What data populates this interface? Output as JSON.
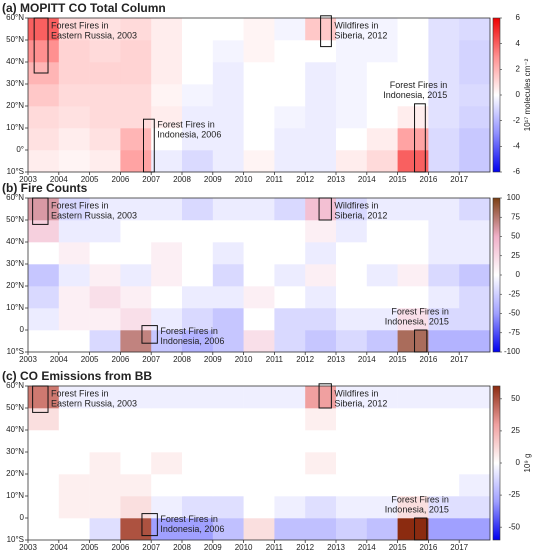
{
  "chart_data": [
    {
      "type": "heatmap",
      "title": "(a) MOPITT CO Total Column",
      "xbins": [
        2003,
        2004,
        2005,
        2006,
        2007,
        2008,
        2009,
        2010,
        2011,
        2012,
        2013,
        2014,
        2015,
        2016,
        2017,
        2018
      ],
      "ybins": [
        -10,
        0,
        10,
        20,
        30,
        40,
        50,
        60
      ],
      "z": [
        [
          0.5,
          0.3,
          0.5,
          2.5,
          -0.5,
          -1,
          -0.5,
          0.3,
          -0.5,
          -0.5,
          0.5,
          1,
          4,
          -1,
          -1.5
        ],
        [
          0.8,
          0.5,
          0.8,
          2,
          0,
          -0.5,
          -0.5,
          0,
          -0.5,
          -0.5,
          0,
          0.5,
          2.5,
          -1,
          -1.5
        ],
        [
          1,
          0.8,
          1,
          1,
          0.5,
          -0.5,
          -0.5,
          0,
          -0.3,
          -0.5,
          -0.3,
          0,
          0.5,
          -0.8,
          -1.2
        ],
        [
          1.5,
          1,
          1,
          1,
          0.3,
          -0.3,
          -0.5,
          0,
          0,
          -0.5,
          -0.3,
          0,
          0,
          -0.8,
          -1
        ],
        [
          2,
          1.2,
          1.2,
          1.2,
          0.5,
          0,
          -0.5,
          0,
          0,
          -0.5,
          -0.3,
          0,
          0,
          -0.8,
          -1.2
        ],
        [
          3,
          1.2,
          1,
          1.2,
          0.5,
          0,
          -0.3,
          0.3,
          0,
          0,
          -0.3,
          -0.3,
          0,
          -0.8,
          -1.2
        ],
        [
          4,
          1,
          0.8,
          1,
          0.5,
          0,
          0,
          0.3,
          -0.3,
          1.5,
          -0.3,
          -0.3,
          0,
          -0.8,
          -1
        ]
      ],
      "zlim": [
        -6,
        6
      ],
      "zticks": [
        -6,
        -4,
        -2,
        0,
        2,
        4,
        6
      ],
      "colormap": [
        "#0000ee",
        "#9090ff",
        "#ffffff",
        "#ff9090",
        "#ee0000"
      ],
      "colorbar_label": "10¹⁷ molecules cm⁻²",
      "xlim": [
        2003,
        2018
      ],
      "xticks": [
        2003,
        2004,
        2005,
        2006,
        2007,
        2008,
        2009,
        2010,
        2011,
        2012,
        2013,
        2014,
        2015,
        2016,
        2017
      ],
      "ylim": [
        -10,
        60
      ],
      "yticks": [
        {
          "value": -10,
          "label": "10°S"
        },
        {
          "value": 0,
          "label": "0°"
        },
        {
          "value": 10,
          "label": "10°N"
        },
        {
          "value": 20,
          "label": "20°N"
        },
        {
          "value": 30,
          "label": "30°N"
        },
        {
          "value": 40,
          "label": "40°N"
        },
        {
          "value": 50,
          "label": "50°N"
        },
        {
          "value": 60,
          "label": "60°N"
        }
      ],
      "annotations": [
        {
          "text": [
            "Forest Fires in",
            "Eastern Russia, 2003"
          ],
          "xrange": [
            2003.2,
            2003.65
          ],
          "yrange": [
            35,
            60
          ]
        },
        {
          "text": [
            "Forest Fires in",
            "Indonesia, 2006"
          ],
          "xrange": [
            2006.75,
            2007.1
          ],
          "yrange": [
            -10,
            14
          ]
        },
        {
          "text": [
            "Wildfires in",
            "Siberia, 2012"
          ],
          "xrange": [
            2012.5,
            2012.85
          ],
          "yrange": [
            47,
            61
          ]
        },
        {
          "text": [
            "Forest Fires in",
            "Indonesia, 2015"
          ],
          "xrange": [
            2015.55,
            2015.9
          ],
          "yrange": [
            -10,
            21
          ]
        }
      ]
    },
    {
      "type": "heatmap",
      "title": "(b) Fire Counts",
      "xbins": [
        2003,
        2004,
        2005,
        2006,
        2007,
        2008,
        2009,
        2010,
        2011,
        2012,
        2013,
        2014,
        2015,
        2016,
        2017,
        2018
      ],
      "ybins": [
        -10,
        0,
        10,
        20,
        30,
        40,
        50,
        60
      ],
      "z": [
        [
          0,
          0,
          -20,
          70,
          -30,
          -40,
          -30,
          20,
          -20,
          -30,
          -20,
          -30,
          80,
          -40,
          -40
        ],
        [
          -10,
          10,
          10,
          20,
          -10,
          -20,
          -30,
          0,
          -20,
          -20,
          -10,
          -10,
          20,
          -20,
          -20
        ],
        [
          -20,
          10,
          20,
          10,
          0,
          -10,
          -10,
          10,
          0,
          -10,
          0,
          0,
          0,
          -10,
          -20
        ],
        [
          -30,
          -10,
          10,
          -10,
          10,
          0,
          -20,
          0,
          -10,
          10,
          0,
          -10,
          10,
          -20,
          -30
        ],
        [
          0,
          10,
          0,
          0,
          10,
          0,
          -10,
          0,
          0,
          -10,
          0,
          0,
          0,
          -10,
          -10
        ],
        [
          30,
          -10,
          -10,
          0,
          0,
          0,
          0,
          0,
          0,
          10,
          -10,
          0,
          0,
          -10,
          -10
        ],
        [
          60,
          -20,
          -10,
          -10,
          -10,
          -20,
          -10,
          -10,
          -20,
          40,
          -20,
          -10,
          -10,
          -10,
          -20
        ]
      ],
      "zlim": [
        -100,
        100
      ],
      "zticks": [
        -100,
        -75,
        -50,
        -25,
        0,
        25,
        50,
        75,
        100
      ],
      "colormap": [
        "#0000ee",
        "#a0a0ff",
        "#ffffff",
        "#f0b0c8",
        "#7b3f12"
      ],
      "xlim": [
        2003,
        2018
      ],
      "xticks": [
        2003,
        2004,
        2005,
        2006,
        2007,
        2008,
        2009,
        2010,
        2011,
        2012,
        2013,
        2014,
        2015,
        2016,
        2017
      ],
      "ylim": [
        -10,
        60
      ],
      "yticks": [
        {
          "value": -10,
          "label": "10°S"
        },
        {
          "value": 0,
          "label": "0"
        },
        {
          "value": 10,
          "label": "10°N"
        },
        {
          "value": 20,
          "label": "20°N"
        },
        {
          "value": 30,
          "label": "30°N"
        },
        {
          "value": 40,
          "label": "40°N"
        },
        {
          "value": 50,
          "label": "50°N"
        },
        {
          "value": 60,
          "label": "60°N"
        }
      ],
      "annotations": [
        {
          "text": [
            "Forest Fires in",
            "Eastern Russia, 2003"
          ],
          "xrange": [
            2003.15,
            2003.65
          ],
          "yrange": [
            48,
            60
          ]
        },
        {
          "text": [
            "Forest Fires in",
            "Indonesia, 2006"
          ],
          "xrange": [
            2006.7,
            2007.2
          ],
          "yrange": [
            -6,
            2
          ]
        },
        {
          "text": [
            "Wildfires in",
            "Siberia, 2012"
          ],
          "xrange": [
            2012.45,
            2012.85
          ],
          "yrange": [
            50,
            60
          ]
        },
        {
          "text": [
            "Forest Fires in",
            "Indonesia, 2015"
          ],
          "xrange": [
            2015.55,
            2015.95
          ],
          "yrange": [
            -10,
            0
          ]
        }
      ]
    },
    {
      "type": "heatmap",
      "title": "(c) CO Emissions from BB",
      "xbins": [
        2003,
        2004,
        2005,
        2006,
        2007,
        2008,
        2009,
        2010,
        2011,
        2012,
        2013,
        2014,
        2015,
        2016,
        2017,
        2018
      ],
      "ybins": [
        -10,
        0,
        10,
        20,
        30,
        40,
        50,
        60
      ],
      "z": [
        [
          0,
          0,
          -10,
          50,
          -30,
          -30,
          -20,
          10,
          -20,
          -20,
          -15,
          -20,
          60,
          -30,
          -30
        ],
        [
          0,
          5,
          5,
          10,
          -5,
          -10,
          -10,
          0,
          -5,
          -10,
          -5,
          -5,
          10,
          -10,
          -10
        ],
        [
          0,
          5,
          5,
          5,
          0,
          0,
          0,
          0,
          0,
          0,
          0,
          0,
          0,
          0,
          -5
        ],
        [
          0,
          0,
          5,
          0,
          5,
          0,
          0,
          0,
          0,
          5,
          0,
          0,
          0,
          0,
          0
        ],
        [
          0,
          0,
          0,
          0,
          0,
          0,
          0,
          0,
          0,
          0,
          0,
          0,
          0,
          0,
          0
        ],
        [
          10,
          0,
          0,
          0,
          0,
          0,
          0,
          0,
          0,
          5,
          0,
          0,
          0,
          0,
          0
        ],
        [
          40,
          -5,
          -5,
          -5,
          -5,
          -5,
          -5,
          -5,
          -5,
          30,
          -5,
          -5,
          -5,
          -5,
          -5
        ]
      ],
      "zlim": [
        -60,
        60
      ],
      "zticks": [
        -50,
        -25,
        0,
        25,
        50
      ],
      "colormap": [
        "#0000ee",
        "#a0a0ff",
        "#ffffff",
        "#f0a0a0",
        "#8b2b10"
      ],
      "colorbar_label": "10⁹ g",
      "xlim": [
        2003,
        2018
      ],
      "xticks": [
        2003,
        2004,
        2005,
        2006,
        2007,
        2008,
        2009,
        2010,
        2011,
        2012,
        2013,
        2014,
        2015,
        2016,
        2017
      ],
      "ylim": [
        -10,
        60
      ],
      "yticks": [
        {
          "value": -10,
          "label": "10°S"
        },
        {
          "value": 0,
          "label": "0"
        },
        {
          "value": 10,
          "label": "10°N"
        },
        {
          "value": 20,
          "label": "20°N"
        },
        {
          "value": 30,
          "label": "30°N"
        },
        {
          "value": 40,
          "label": "40°N"
        },
        {
          "value": 50,
          "label": "50°N"
        },
        {
          "value": 60,
          "label": "60°N"
        }
      ],
      "annotations": [
        {
          "text": [
            "Forest Fires in",
            "Eastern Russia, 2003"
          ],
          "xrange": [
            2003.15,
            2003.65
          ],
          "yrange": [
            48,
            60
          ]
        },
        {
          "text": [
            "Forest Fires in",
            "Indonesia, 2006"
          ],
          "xrange": [
            2006.7,
            2007.2
          ],
          "yrange": [
            -8,
            2
          ]
        },
        {
          "text": [
            "Wildfires in",
            "Siberia, 2012"
          ],
          "xrange": [
            2012.45,
            2012.85
          ],
          "yrange": [
            50,
            61
          ]
        },
        {
          "text": [
            "Forest Fires in",
            "Indonesia, 2015"
          ],
          "xrange": [
            2015.55,
            2015.95
          ],
          "yrange": [
            -10,
            0
          ]
        }
      ]
    }
  ]
}
